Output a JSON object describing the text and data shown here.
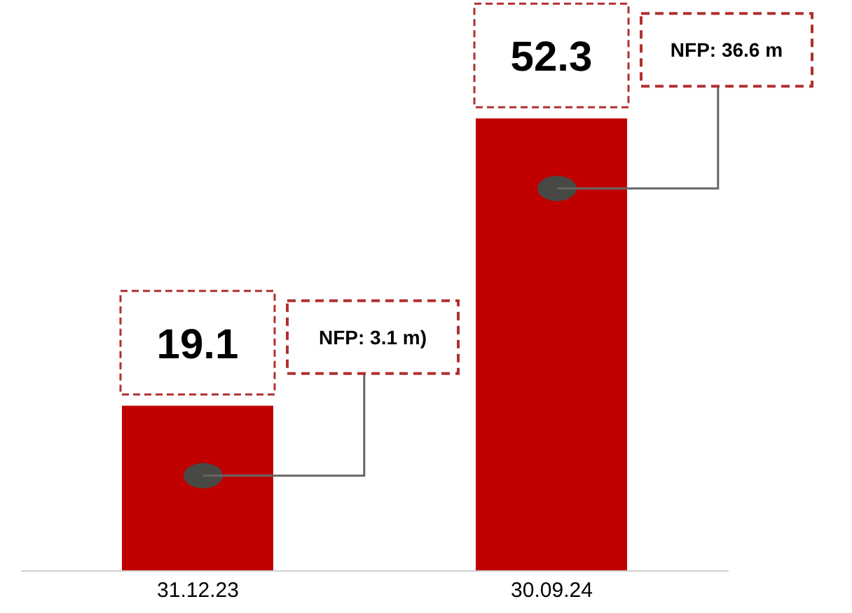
{
  "chart_data": {
    "type": "bar",
    "categories": [
      "31.12.23",
      "30.09.24"
    ],
    "values": [
      19.1,
      52.3
    ],
    "color": "#c00000",
    "data_labels": true,
    "annotations": [
      "NFP: 3.1 m)",
      "NFP: 36.6 m"
    ]
  }
}
